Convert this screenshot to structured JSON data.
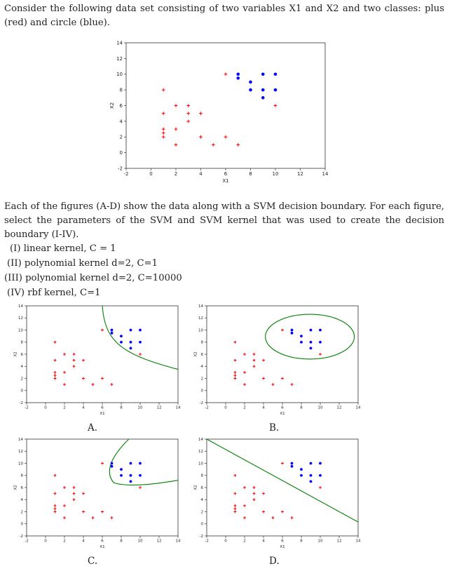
{
  "intro": "Consider the following data set consisting of two variables X1 and X2 and two classes: plus (red) and circle (blue).",
  "instructions": "Each of the figures (A-D) show the data along with a SVM decision boundary. For each figure, select the parameters of the SVM and SVM kernel that was used to create the decision boundary (I-IV).",
  "options": [
    "(I) linear kernel, C = 1",
    "(II) polynomial kernel d=2, C=1",
    "(III) polynomial kernel d=2, C=10000",
    "(IV) rbf kernel, C=1"
  ],
  "colors": {
    "plus": "#ff0000",
    "circle": "#0000ff",
    "boundary": "#008000"
  },
  "chart_data": [
    {
      "type": "scatter",
      "xlabel": "X1",
      "ylabel": "X2",
      "xlim": [
        -2,
        14
      ],
      "ylim": [
        -2,
        14
      ],
      "xticks": [
        -2,
        0,
        2,
        4,
        6,
        8,
        10,
        12,
        14
      ],
      "yticks": [
        -2,
        0,
        2,
        4,
        6,
        8,
        10,
        12,
        14
      ],
      "series": [
        {
          "marker": "plus",
          "color": "#ff0000",
          "x": [
            1,
            1,
            1,
            1,
            1,
            2,
            2,
            2,
            3,
            3,
            3,
            4,
            4,
            5,
            6,
            6,
            7,
            10
          ],
          "y": [
            8,
            5,
            3,
            2.5,
            2,
            6,
            3,
            1,
            6,
            5,
            4,
            5,
            2,
            1,
            10,
            2,
            1,
            6
          ]
        },
        {
          "marker": "circle",
          "color": "#0000ff",
          "x": [
            7,
            7,
            8,
            8,
            9,
            9,
            9,
            10,
            10
          ],
          "y": [
            10,
            9.5,
            9,
            8,
            10,
            8,
            7,
            10,
            8
          ]
        }
      ]
    },
    {
      "type": "scatter",
      "caption": "A.",
      "xlabel": "X1",
      "ylabel": "X2",
      "xlim": [
        -2,
        14
      ],
      "ylim": [
        -2,
        14
      ],
      "boundary": "curve"
    },
    {
      "type": "scatter",
      "caption": "B.",
      "xlabel": "X1",
      "ylabel": "X2",
      "xlim": [
        -2,
        14
      ],
      "ylim": [
        -2,
        14
      ],
      "boundary": "ellipse"
    },
    {
      "type": "scatter",
      "caption": "C.",
      "xlabel": "X1",
      "ylabel": "X2",
      "xlim": [
        -2,
        14
      ],
      "ylim": [
        -2,
        14
      ],
      "boundary": "curve"
    },
    {
      "type": "scatter",
      "caption": "D.",
      "xlabel": "X1",
      "ylabel": "X2",
      "xlim": [
        -2,
        14
      ],
      "ylim": [
        -2,
        14
      ],
      "boundary": "line"
    }
  ]
}
